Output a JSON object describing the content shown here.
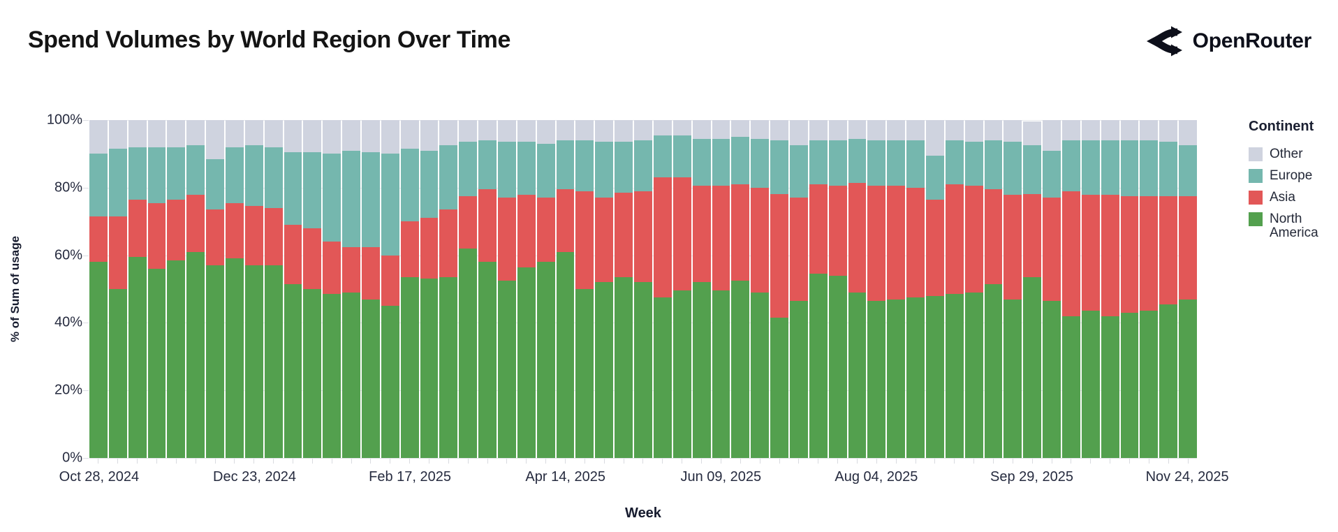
{
  "header": {
    "title": "Spend Volumes by World Region Over Time",
    "brand": "OpenRouter"
  },
  "legend": {
    "title": "Continent",
    "entries": [
      {
        "label": "Other",
        "color": "#cfd3df"
      },
      {
        "label": "Europe",
        "color": "#75b7ae"
      },
      {
        "label": "Asia",
        "color": "#e25757"
      },
      {
        "label": "North America",
        "color": "#53a04e"
      }
    ]
  },
  "chart_data": {
    "type": "bar",
    "stacked": true,
    "unit": "percent_of_total",
    "title": "Spend Volumes by World Region Over Time",
    "xlabel": "Week",
    "ylabel": "% of Sum of usage",
    "ylim": [
      0,
      100
    ],
    "grid": true,
    "legend_position": "right",
    "y_ticks": [
      "0%",
      "20%",
      "40%",
      "60%",
      "80%",
      "100%"
    ],
    "x_tick_positions": [
      0,
      8,
      16,
      24,
      32,
      40,
      48,
      56
    ],
    "x_tick_labels": [
      "Oct 28, 2024",
      "Dec 23, 2024",
      "Feb 17, 2025",
      "Apr 14, 2025",
      "Jun 09, 2025",
      "Aug 04, 2025",
      "Sep 29, 2025",
      "Nov 24, 2025"
    ],
    "weeks": [
      "2024-10-28",
      "2024-11-04",
      "2024-11-11",
      "2024-11-18",
      "2024-11-25",
      "2024-12-02",
      "2024-12-09",
      "2024-12-16",
      "2024-12-23",
      "2024-12-30",
      "2025-01-06",
      "2025-01-13",
      "2025-01-20",
      "2025-01-27",
      "2025-02-03",
      "2025-02-10",
      "2025-02-17",
      "2025-02-24",
      "2025-03-03",
      "2025-03-10",
      "2025-03-17",
      "2025-03-24",
      "2025-03-31",
      "2025-04-07",
      "2025-04-14",
      "2025-04-21",
      "2025-04-28",
      "2025-05-05",
      "2025-05-12",
      "2025-05-19",
      "2025-05-26",
      "2025-06-02",
      "2025-06-09",
      "2025-06-16",
      "2025-06-23",
      "2025-06-30",
      "2025-07-07",
      "2025-07-14",
      "2025-07-21",
      "2025-07-28",
      "2025-08-04",
      "2025-08-11",
      "2025-08-18",
      "2025-08-25",
      "2025-09-01",
      "2025-09-08",
      "2025-09-15",
      "2025-09-22",
      "2025-09-29",
      "2025-10-06",
      "2025-10-13",
      "2025-10-20",
      "2025-10-27",
      "2025-11-03",
      "2025-11-10",
      "2025-11-17",
      "2025-11-24"
    ],
    "series": [
      {
        "name": "North America",
        "color": "#53a04e",
        "values": [
          58,
          50,
          59.5,
          56,
          58.5,
          61,
          57,
          59,
          57,
          57,
          51.5,
          50,
          48.5,
          49,
          47,
          45,
          53.5,
          53,
          53.5,
          62,
          58,
          52.5,
          56.5,
          58,
          61,
          50,
          52,
          53.5,
          52,
          47.5,
          49.5,
          52,
          49.5,
          52.5,
          49,
          41.5,
          46.5,
          54.5,
          54,
          49,
          46.5,
          47,
          47.5,
          48,
          48.5,
          49,
          51.5,
          47,
          53.5,
          46.5,
          42,
          43.5,
          42,
          43,
          43.5,
          45.5,
          47
        ]
      },
      {
        "name": "Asia",
        "color": "#e25757",
        "values": [
          13.5,
          21.5,
          17,
          19.5,
          18,
          17,
          16.5,
          16.5,
          17.5,
          17,
          17.5,
          18,
          15.5,
          13.5,
          15.5,
          15,
          16.5,
          18,
          20,
          15.5,
          21.5,
          24.5,
          21.5,
          19,
          18.5,
          29,
          25,
          25,
          27,
          35.5,
          33.5,
          28.5,
          31,
          28.5,
          31,
          36.5,
          30.5,
          26.5,
          26.5,
          32.5,
          34,
          33.5,
          32.5,
          28.5,
          32.5,
          31.5,
          28,
          31,
          24.5,
          30.5,
          37,
          34.5,
          36,
          34.5,
          34,
          32,
          30.5
        ]
      },
      {
        "name": "Europe",
        "color": "#75b7ae",
        "values": [
          18.5,
          20,
          15.5,
          16.5,
          15.5,
          14.5,
          15,
          16.5,
          18,
          18,
          21.5,
          22.5,
          26,
          28.5,
          28,
          30,
          21.5,
          20,
          19,
          16,
          14.5,
          16.5,
          15.5,
          16,
          14.5,
          15,
          16.5,
          15,
          15,
          12.5,
          12.5,
          14,
          14,
          14,
          14.5,
          16,
          15.5,
          13,
          13.5,
          13,
          13.5,
          13.5,
          14,
          13,
          13,
          13,
          14.5,
          15.5,
          14.5,
          14,
          15,
          16,
          16,
          16.5,
          16.5,
          16,
          15
        ]
      },
      {
        "name": "Other",
        "color": "#cfd3df",
        "values": [
          10,
          8.5,
          8,
          8,
          8,
          7.5,
          11.5,
          8,
          7.5,
          8,
          9.5,
          9.5,
          10,
          9,
          9.5,
          10,
          8.5,
          9,
          7.5,
          6.5,
          6,
          6.5,
          6.5,
          7,
          6,
          6,
          6.5,
          6.5,
          6,
          4.5,
          4.5,
          5.5,
          5.5,
          5,
          5.5,
          6,
          7.5,
          6,
          6,
          5.5,
          6,
          6,
          6,
          10.5,
          6,
          6.5,
          6,
          6.5,
          7,
          9,
          6,
          6,
          6,
          6,
          6,
          6.5,
          7.5
        ]
      }
    ]
  }
}
